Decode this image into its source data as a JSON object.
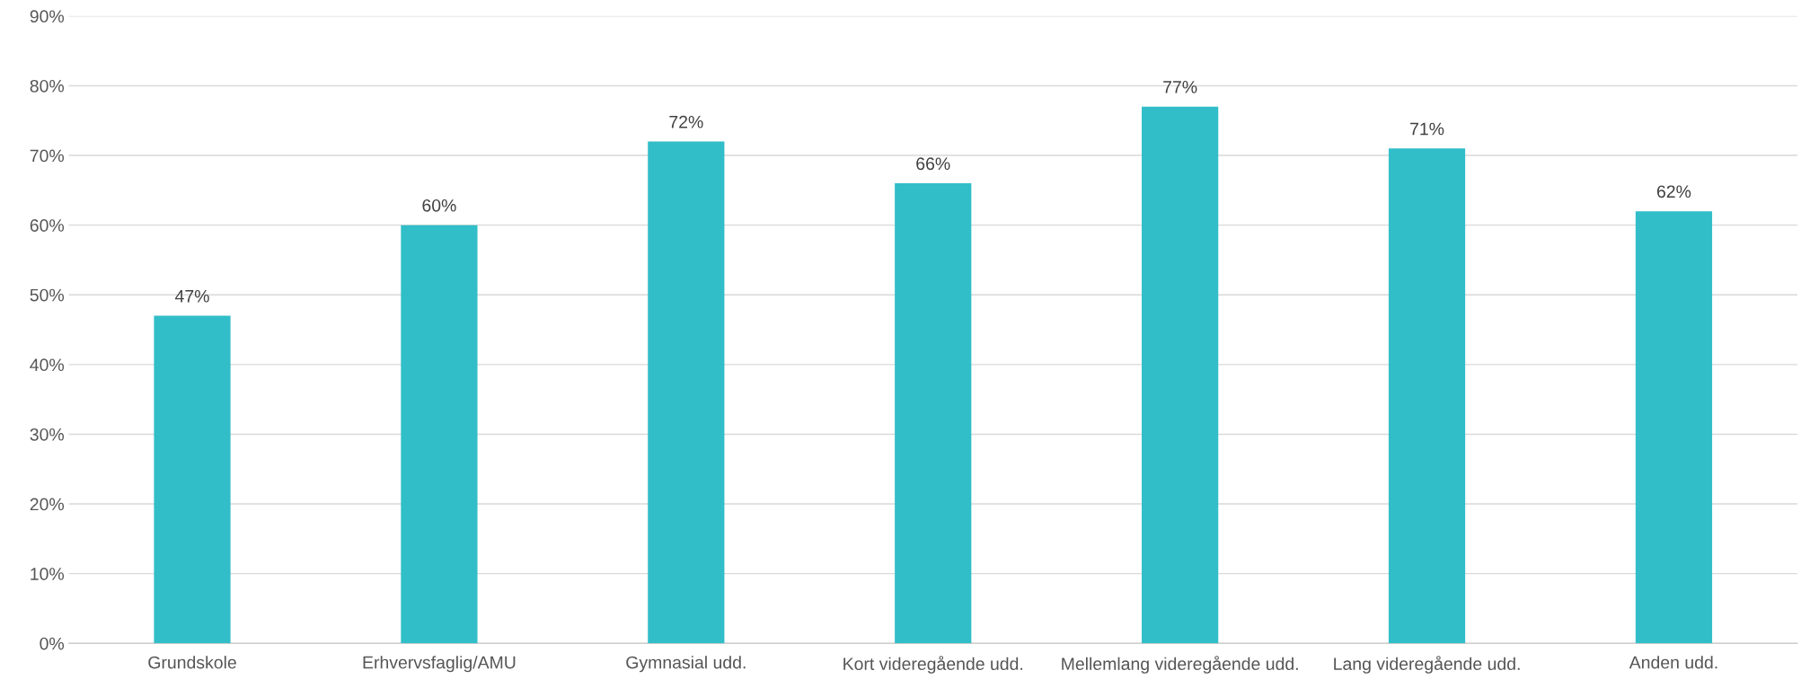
{
  "chart_data": {
    "type": "bar",
    "categories": [
      "Grundskole",
      "Erhvervsfaglig/AMU",
      "Gymnasial udd.",
      "Kort videregående udd.",
      "Mellemlang videregående udd.",
      "Lang videregående udd.",
      "Anden udd."
    ],
    "values": [
      47,
      60,
      72,
      66,
      77,
      71,
      62
    ],
    "color": "#31bec8",
    "ylim": [
      0,
      90
    ],
    "yticks": [
      {
        "value": 0,
        "label": "0%"
      },
      {
        "value": 10,
        "label": "10%"
      },
      {
        "value": 20,
        "label": "20%"
      },
      {
        "value": 30,
        "label": "30%"
      },
      {
        "value": 40,
        "label": "40%"
      },
      {
        "value": 50,
        "label": "50%"
      },
      {
        "value": 60,
        "label": "60%"
      },
      {
        "value": 70,
        "label": "70%"
      },
      {
        "value": 80,
        "label": "80%"
      },
      {
        "value": 90,
        "label": "90%"
      }
    ],
    "value_labels": [
      "47%",
      "60%",
      "72%",
      "66%",
      "77%",
      "71%",
      "62%"
    ],
    "grid": "y",
    "legend": false
  }
}
